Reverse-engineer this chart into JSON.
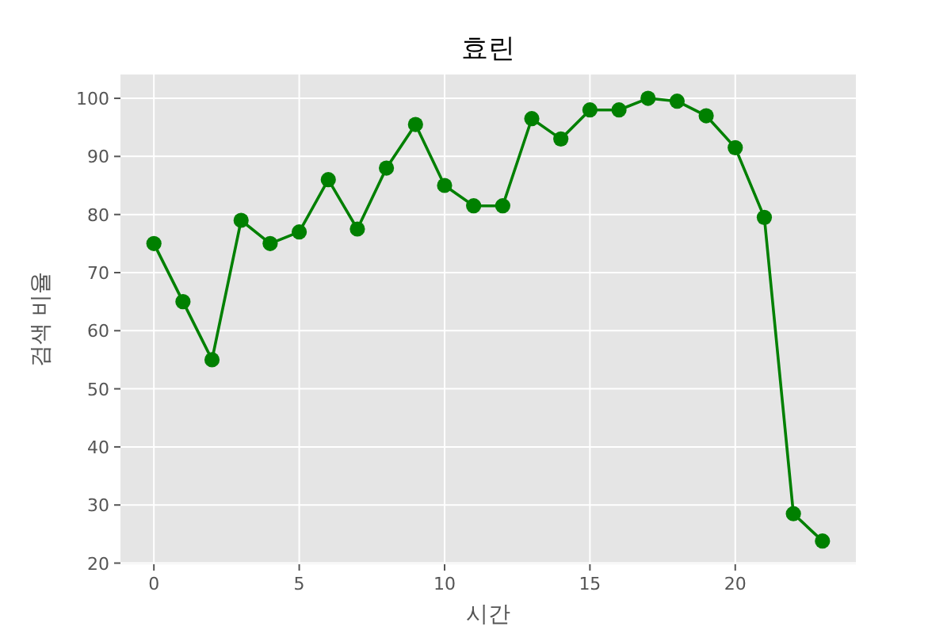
{
  "chart_data": {
    "type": "line",
    "title": "효린",
    "xlabel": "시간",
    "ylabel": "검색 비율",
    "x": [
      0,
      1,
      2,
      3,
      4,
      5,
      6,
      7,
      8,
      9,
      10,
      11,
      12,
      13,
      14,
      15,
      16,
      17,
      18,
      19,
      20,
      21,
      22,
      23
    ],
    "series": [
      {
        "color": "#008000",
        "values": [
          75,
          65,
          55,
          79,
          75,
          77,
          86,
          77.5,
          88,
          95.5,
          85,
          81.5,
          81.5,
          96.5,
          93,
          98,
          98,
          100,
          99.5,
          97,
          91.5,
          79.5,
          28.5,
          23.8
        ]
      }
    ],
    "xlim": [
      -1.15,
      24.15
    ],
    "xticks": [
      0,
      5,
      10,
      15,
      20
    ],
    "ylim": [
      19.8,
      104.1
    ],
    "yticks": [
      20,
      30,
      40,
      50,
      60,
      70,
      80,
      90,
      100
    ],
    "grid": true,
    "marker": "circle",
    "line_style": "solid"
  }
}
